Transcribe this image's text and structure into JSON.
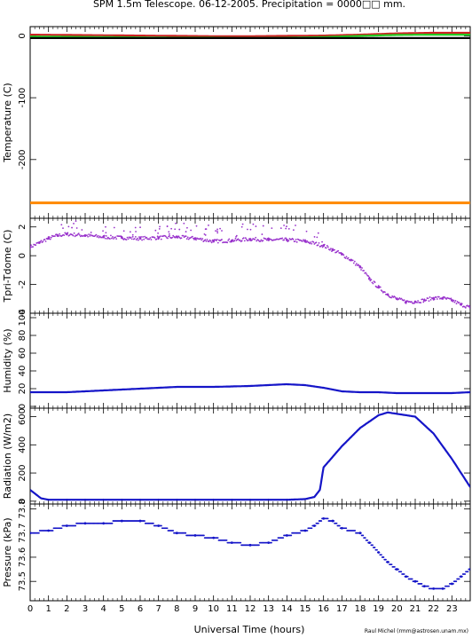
{
  "title": "SPM 1.5m Telescope. 06-12-2005. Precipitation = 0000□□ mm.",
  "xlabel": "Universal Time (hours)",
  "credit": "Raul Michel (rmm@astrosen.unam.mx)",
  "colors": {
    "purple": "#9933cc",
    "blue": "#1515c8",
    "green": "#22cc22",
    "red": "#cc2222",
    "orange": "#ff8800",
    "black": "#000000"
  },
  "chart_data": [
    {
      "type": "line",
      "ylabel": "Temperature (C)",
      "xlim": [
        0,
        24
      ],
      "ylim": [
        -295,
        15
      ],
      "yticks": [
        0,
        -100,
        -200
      ],
      "series": [
        {
          "color": "red",
          "x": [
            0,
            2,
            4,
            6,
            8,
            10,
            12,
            14,
            16,
            18,
            20,
            22,
            24
          ],
          "values": [
            2,
            1.5,
            1,
            0.5,
            0,
            -0.5,
            -0.5,
            0,
            0.5,
            2,
            4,
            5,
            5
          ]
        },
        {
          "color": "green",
          "x": [
            0,
            2,
            4,
            6,
            8,
            10,
            12,
            14,
            16,
            18,
            20,
            22,
            24
          ],
          "values": [
            -1,
            -1.5,
            -2,
            -2.5,
            -3,
            -3,
            -3.5,
            -3,
            -2,
            0,
            1.5,
            2,
            2
          ]
        },
        {
          "color": "black",
          "x": [
            0,
            24
          ],
          "values": [
            -3.5,
            -3.5
          ]
        },
        {
          "color": "orange",
          "x": [
            0,
            24
          ],
          "values": [
            -270,
            -270
          ]
        }
      ]
    },
    {
      "type": "scatter",
      "ylabel": "Tpri-Tdome (C)",
      "xlim": [
        0,
        24
      ],
      "ylim": [
        -4,
        2.6
      ],
      "yticks": [
        2,
        0,
        -2,
        -4
      ],
      "color": "purple",
      "x": [
        0,
        0.5,
        1,
        1.5,
        2,
        3,
        4,
        5,
        6,
        7,
        8,
        9,
        10,
        11,
        12,
        13,
        14,
        15,
        16,
        16.5,
        17,
        17.5,
        18,
        18.5,
        19,
        19.5,
        20,
        20.5,
        21,
        21.5,
        22,
        22.5,
        23,
        23.5,
        24
      ],
      "values": [
        0.6,
        0.9,
        1.2,
        1.4,
        1.5,
        1.4,
        1.3,
        1.25,
        1.2,
        1.25,
        1.3,
        1.2,
        1.0,
        1.05,
        1.15,
        1.1,
        1.1,
        1.0,
        0.7,
        0.4,
        0.1,
        -0.3,
        -0.8,
        -1.6,
        -2.2,
        -2.7,
        -3.0,
        -3.2,
        -3.2,
        -3.1,
        -2.95,
        -2.95,
        -3.1,
        -3.4,
        -3.6
      ]
    },
    {
      "type": "line",
      "ylabel": "Humidity (%)",
      "xlim": [
        0,
        24
      ],
      "ylim": [
        -2,
        105
      ],
      "yticks": [
        0,
        20,
        40,
        60,
        80,
        100
      ],
      "color": "blue",
      "x": [
        0,
        2,
        4,
        6,
        8,
        10,
        12,
        14,
        15,
        16,
        17,
        18,
        19,
        20,
        21,
        22,
        23,
        24
      ],
      "values": [
        16,
        16,
        18,
        20,
        22,
        22,
        23,
        25,
        24,
        21,
        17,
        16,
        16,
        15,
        15,
        15,
        15,
        16
      ]
    },
    {
      "type": "line",
      "ylabel": "Radiation (W/m2)",
      "xlim": [
        0,
        24
      ],
      "ylim": [
        -20,
        660
      ],
      "yticks": [
        0,
        200,
        400,
        600
      ],
      "color": "blue",
      "x": [
        0,
        0.3,
        0.6,
        1,
        2,
        4,
        6,
        8,
        10,
        12,
        14,
        15,
        15.5,
        15.8,
        16,
        17,
        18,
        19,
        19.5,
        20,
        21,
        22,
        23,
        24
      ],
      "values": [
        80,
        50,
        20,
        10,
        10,
        10,
        10,
        10,
        10,
        10,
        10,
        15,
        30,
        80,
        240,
        390,
        520,
        610,
        630,
        620,
        600,
        480,
        300,
        100
      ]
    },
    {
      "type": "scatter",
      "ylabel": "Pressure (kPa)",
      "xlim": [
        0,
        24
      ],
      "ylim": [
        73.42,
        73.82
      ],
      "yticks": [
        73.5,
        73.6,
        73.7,
        73.8
      ],
      "color": "blue",
      "x": [
        0,
        1,
        2,
        3,
        4,
        5,
        6,
        7,
        8,
        9,
        10,
        11,
        12,
        13,
        14,
        15,
        15.5,
        16,
        16.5,
        17,
        18,
        18.5,
        19,
        19.5,
        20,
        20.5,
        21,
        21.5,
        22,
        22.5,
        23,
        23.5,
        24
      ],
      "values": [
        73.7,
        73.71,
        73.73,
        73.74,
        73.74,
        73.75,
        73.75,
        73.73,
        73.7,
        73.69,
        73.68,
        73.66,
        73.65,
        73.66,
        73.69,
        73.71,
        73.73,
        73.76,
        73.75,
        73.72,
        73.7,
        73.66,
        73.62,
        73.58,
        73.55,
        73.52,
        73.5,
        73.48,
        73.47,
        73.47,
        73.49,
        73.52,
        73.55
      ]
    }
  ]
}
